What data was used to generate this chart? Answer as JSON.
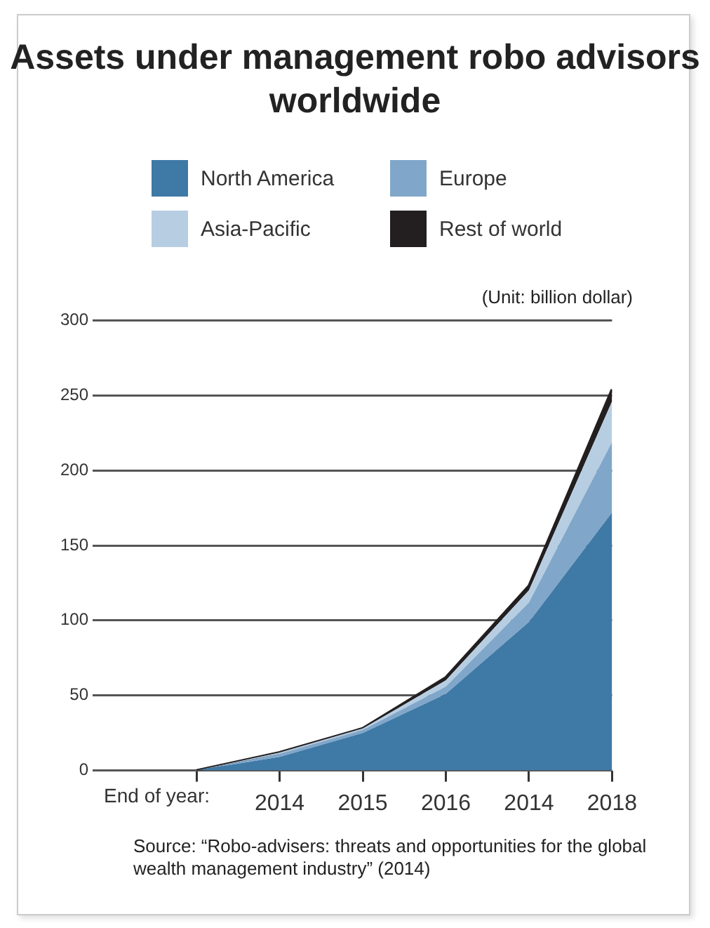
{
  "chart_data": {
    "type": "area",
    "title": "Assets under management robo advisors worldwide",
    "xlabel": "End of year:",
    "categories": [
      null,
      "2014",
      "2015",
      "2016",
      "2014",
      "2018"
    ],
    "series": [
      {
        "name": "North America",
        "color": "#3f79a6",
        "values": [
          0,
          9,
          25,
          51,
          99,
          172
        ]
      },
      {
        "name": "Europe",
        "color": "#80a7c9",
        "values": [
          0,
          2,
          2,
          5,
          13,
          47
        ]
      },
      {
        "name": "Asia-Pacific",
        "color": "#b7cde2",
        "values": [
          0,
          1,
          1,
          4,
          8,
          27
        ]
      },
      {
        "name": "Rest of world",
        "color": "#231f20",
        "values": [
          0,
          0,
          0,
          2,
          3,
          8
        ]
      }
    ],
    "stacked": true,
    "ylim": [
      0,
      300
    ],
    "yticks": [
      0,
      50,
      100,
      150,
      200,
      250,
      300
    ],
    "grid": "y",
    "legend": "top",
    "annotations": [
      "(Unit: billion dollar)",
      "Source: “Robo-advisers: threats and opportunities for the global wealth management industry” (2014)"
    ]
  }
}
